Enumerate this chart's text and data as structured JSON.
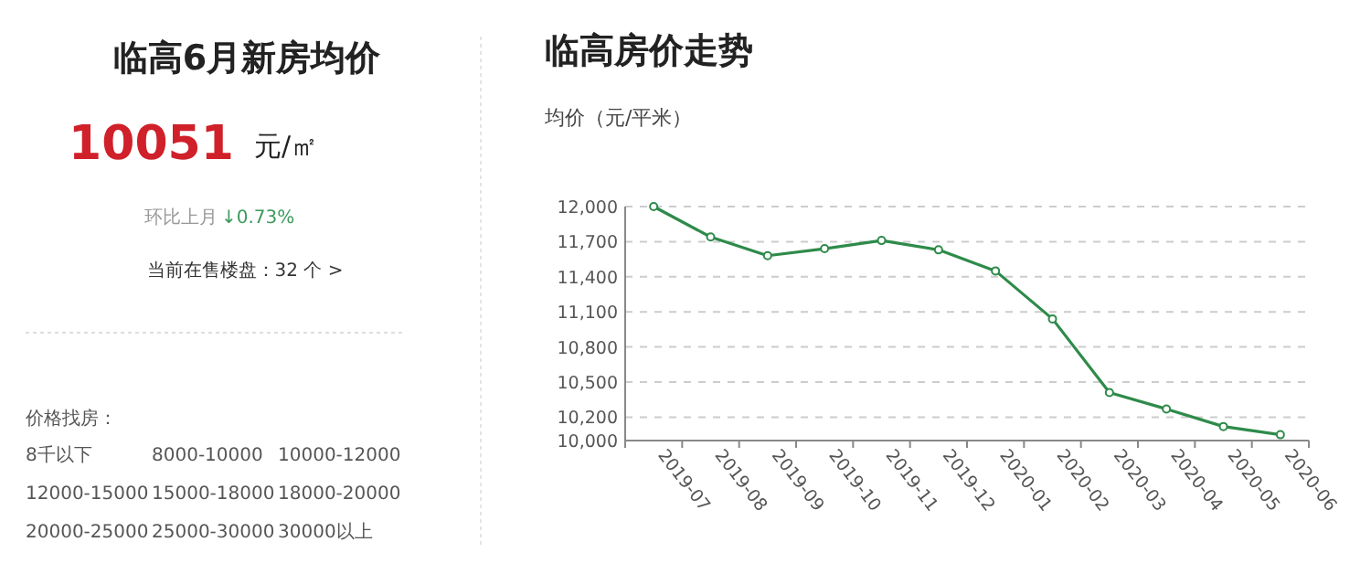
{
  "chart_data": [
    {
      "type": "other",
      "title": "临高6月新房均价",
      "annotations": [
        "10051",
        "元/㎡",
        "环比上月",
        "↓0.73%",
        "当前在售楼盘：32 个 >",
        "价格找房：",
        "8千以下",
        "8000-10000",
        "10000-12000",
        "12000-15000",
        "15000-18000",
        "18000-20000",
        "20000-25000",
        "25000-30000",
        "30000以上"
      ]
    },
    {
      "type": "line",
      "title": "临高房价走势",
      "ylabel": "均价（元/平米）",
      "categories": [
        "2019-07",
        "2019-08",
        "2019-09",
        "2019-10",
        "2019-11",
        "2019-12",
        "2020-01",
        "2020-02",
        "2020-03",
        "2020-04",
        "2020-05",
        "2020-06"
      ],
      "series": [
        {
          "color": "#2e8b4a",
          "values": [
            12000,
            11740,
            11580,
            11640,
            11710,
            11630,
            11450,
            11040,
            10410,
            10270,
            10120,
            10050
          ]
        }
      ],
      "ylim": [
        10000,
        12000
      ],
      "yticks": [
        {
          "value": 10000,
          "label": "10,000"
        },
        {
          "value": 10200,
          "label": "10,200"
        },
        {
          "value": 10500,
          "label": "10,500"
        },
        {
          "value": 10800,
          "label": "10,800"
        },
        {
          "value": 11100,
          "label": "11,100"
        },
        {
          "value": 11400,
          "label": "11,400"
        },
        {
          "value": 11700,
          "label": "11,700"
        },
        {
          "value": 12000,
          "label": "12,000"
        }
      ],
      "grid": "y",
      "marker": "circle",
      "line_style": "solid"
    }
  ]
}
